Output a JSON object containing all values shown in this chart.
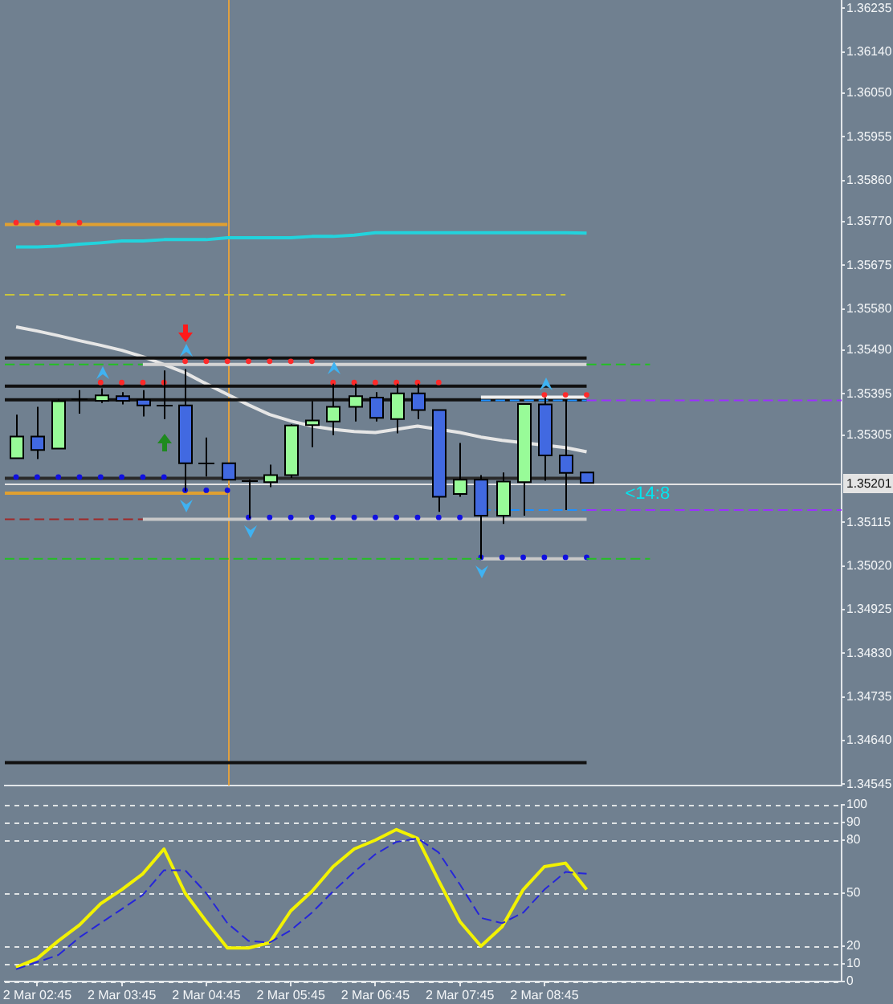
{
  "chart_data": [
    {
      "type": "candlestick",
      "x": [
        "--03-02T02:30",
        "--03-02T02:45",
        "--03-02T03:00",
        "--03-02T03:15",
        "--03-02T03:30",
        "--03-02T03:45",
        "--03-02T04:00",
        "--03-02T04:15",
        "--03-02T04:30",
        "--03-02T04:45",
        "--03-02T05:00",
        "--03-02T05:15",
        "--03-02T05:30",
        "--03-02T05:45",
        "--03-02T06:00",
        "--03-02T06:15",
        "--03-02T06:30",
        "--03-02T06:45",
        "--03-02T07:00",
        "--03-02T07:15",
        "--03-02T07:30",
        "--03-02T07:45",
        "--03-02T08:00",
        "--03-02T08:15",
        "--03-02T08:30",
        "--03-02T08:45",
        "--03-02T09:00",
        "--03-02T09:15"
      ],
      "ohlc": [
        [
          1.35255,
          1.3535,
          1.35254,
          1.35302
        ],
        [
          1.35302,
          1.35367,
          1.35253,
          1.35273
        ],
        [
          1.35276,
          1.35384,
          1.35276,
          1.35379
        ],
        [
          1.35384,
          1.35403,
          1.35352,
          1.35384
        ],
        [
          1.3538,
          1.35407,
          1.35375,
          1.35392
        ],
        [
          1.3539,
          1.35399,
          1.35372,
          1.3538
        ],
        [
          1.35382,
          1.35403,
          1.35346,
          1.3537
        ],
        [
          1.35372,
          1.35446,
          1.3534,
          1.35372
        ],
        [
          1.3537,
          1.35449,
          1.35183,
          1.35244
        ],
        [
          1.35244,
          1.353,
          1.35215,
          1.35244
        ],
        [
          1.35244,
          1.35244,
          1.35208,
          1.35208
        ],
        [
          1.35208,
          1.35208,
          1.35124,
          1.35208
        ],
        [
          1.35203,
          1.35241,
          1.35192,
          1.35218
        ],
        [
          1.35218,
          1.35329,
          1.35212,
          1.35326
        ],
        [
          1.35327,
          1.35379,
          1.35279,
          1.35337
        ],
        [
          1.35335,
          1.35417,
          1.35305,
          1.35367
        ],
        [
          1.35367,
          1.35417,
          1.35335,
          1.3539
        ],
        [
          1.35387,
          1.35399,
          1.35335,
          1.35343
        ],
        [
          1.3534,
          1.35417,
          1.35309,
          1.35396
        ],
        [
          1.35396,
          1.35417,
          1.3534,
          1.3536
        ],
        [
          1.3536,
          1.3536,
          1.35138,
          1.35171
        ],
        [
          1.35177,
          1.35288,
          1.35171,
          1.35208
        ],
        [
          1.35208,
          1.35218,
          1.35036,
          1.3513
        ],
        [
          1.3513,
          1.35224,
          1.35112,
          1.35204
        ],
        [
          1.35203,
          1.35373,
          1.3513,
          1.35373
        ],
        [
          1.35372,
          1.35387,
          1.35206,
          1.35261
        ],
        [
          1.35261,
          1.35382,
          1.35142,
          1.35223
        ],
        [
          1.35224,
          1.35224,
          1.35201,
          1.35201
        ]
      ],
      "colors": [
        "#98fb98",
        "#4169e1",
        "#98fb98",
        "#000000",
        "#98fb98",
        "#4169e1",
        "#4169e1",
        "#000000",
        "#4169e1",
        "#000000",
        "#4169e1",
        "#000000",
        "#98fb98",
        "#98fb98",
        "#98fb98",
        "#98fb98",
        "#98fb98",
        "#4169e1",
        "#98fb98",
        "#4169e1",
        "#4169e1",
        "#98fb98",
        "#4169e1",
        "#98fb98",
        "#98fb98",
        "#4169e1",
        "#4169e1",
        "#4169e1"
      ],
      "series": [
        {
          "type": "line",
          "x": [
            "--03-02T02:30",
            "--03-02T02:45",
            "--03-02T03:00",
            "--03-02T03:15",
            "--03-02T03:30",
            "--03-02T03:45",
            "--03-02T04:00",
            "--03-02T04:15",
            "--03-02T04:30",
            "--03-02T04:45",
            "--03-02T05:00",
            "--03-02T05:15",
            "--03-02T05:30",
            "--03-02T05:45",
            "--03-02T06:00",
            "--03-02T06:15",
            "--03-02T06:30",
            "--03-02T06:45",
            "--03-02T07:00",
            "--03-02T07:15",
            "--03-02T07:30",
            "--03-02T07:45",
            "--03-02T08:00",
            "--03-02T08:15",
            "--03-02T08:30",
            "--03-02T08:45",
            "--03-02T09:00",
            "--03-02T09:15"
          ],
          "values": [
            1.35541,
            1.35532,
            1.35522,
            1.35511,
            1.35501,
            1.3549,
            1.35476,
            1.35459,
            1.35441,
            1.35417,
            1.35394,
            1.35371,
            1.3535,
            1.35336,
            1.35325,
            1.35318,
            1.35313,
            1.35311,
            1.35318,
            1.35325,
            null,
            1.35311,
            1.35301,
            1.35294,
            null,
            null,
            1.35278,
            1.35269
          ],
          "color": "#e6e6e6"
        },
        {
          "type": "line",
          "x": [
            "--03-02T02:30",
            "--03-02T02:45",
            "--03-02T03:00",
            "--03-02T03:15",
            "--03-02T03:30",
            "--03-02T03:45",
            "--03-02T04:00",
            "--03-02T04:15",
            "--03-02T04:30",
            "--03-02T04:45",
            "--03-02T05:00",
            "--03-02T05:15",
            "--03-02T05:30",
            "--03-02T05:45",
            "--03-02T06:00",
            "--03-02T06:15",
            "--03-02T06:30",
            "--03-02T06:45",
            "--03-02T07:00",
            "--03-02T07:15",
            "--03-02T07:30",
            "--03-02T07:45",
            "--03-02T08:00",
            "--03-02T08:15",
            "--03-02T08:30",
            "--03-02T08:45",
            "--03-02T09:00",
            "--03-02T09:15"
          ],
          "values": [
            1.35715,
            1.35715,
            1.35717,
            1.35721,
            1.35724,
            1.35728,
            1.35728,
            1.35731,
            1.35731,
            1.35731,
            1.35735,
            1.35735,
            1.35735,
            1.35735,
            1.35738,
            1.35738,
            1.35741,
            1.35746,
            1.35746,
            1.35746,
            1.35746,
            1.35746,
            1.35746,
            1.35746,
            1.35746,
            1.35746,
            1.35746,
            1.35745
          ],
          "color": "#22d3dd"
        },
        {
          "type": "line",
          "x": [
            "--03-02T02:22",
            "--03-02T05:00"
          ],
          "values": [
            1.35764,
            1.35764
          ],
          "color": "#e0a030"
        },
        {
          "type": "scatter",
          "x": [
            "--03-02T02:30",
            "--03-02T02:45",
            "--03-02T03:00",
            "--03-02T03:15"
          ],
          "values": [
            1.35768,
            1.35768,
            1.35768,
            1.35768
          ],
          "color": "#ff2a2a",
          "marker": "circle"
        },
        {
          "type": "line",
          "x": [
            "--03-02T02:22",
            "--03-02T09:00"
          ],
          "values": [
            1.35611,
            1.35611
          ],
          "color": "#c8c43c",
          "line_style": "dashed"
        },
        {
          "type": "line",
          "x": [
            "--03-02T02:22",
            "--03-02T09:15"
          ],
          "values": [
            1.35473,
            1.35473
          ],
          "color": "#111111"
        },
        {
          "type": "line",
          "x": [
            "--03-02T02:22",
            "--03-02T04:00"
          ],
          "values": [
            1.35459,
            1.35459
          ],
          "color": "#22c022",
          "line_style": "dashed"
        },
        {
          "type": "line",
          "x": [
            "--03-02T04:00",
            "--03-02T09:15"
          ],
          "values": [
            1.35459,
            1.35459
          ],
          "color": "#d4d4d4"
        },
        {
          "type": "line",
          "x": [
            "--03-02T09:15",
            "--03-02T10:00"
          ],
          "values": [
            1.35459,
            1.35459
          ],
          "color": "#22c022",
          "line_style": "dashed"
        },
        {
          "type": "scatter",
          "x": [
            "--03-02T04:30",
            "--03-02T04:45",
            "--03-02T05:00",
            "--03-02T05:15",
            "--03-02T05:30",
            "--03-02T05:45",
            "--03-02T06:00"
          ],
          "values": [
            1.35466,
            1.35466,
            1.35466,
            1.35466,
            1.35466,
            1.35466,
            1.35466
          ],
          "color": "#ff2a2a",
          "marker": "circle"
        },
        {
          "type": "line",
          "x": [
            "--03-02T02:22",
            "--03-02T09:15"
          ],
          "values": [
            1.35412,
            1.35412
          ],
          "color": "#111111"
        },
        {
          "type": "scatter",
          "x": [
            "--03-02T03:30",
            "--03-02T03:45",
            "--03-02T04:00",
            "--03-02T04:15",
            "--03-02T06:15",
            "--03-02T06:30",
            "--03-02T06:45",
            "--03-02T07:00",
            "--03-02T07:15",
            "--03-02T07:30"
          ],
          "values": [
            1.3542,
            1.3542,
            1.3542,
            1.3542,
            1.3542,
            1.3542,
            1.3542,
            1.3542,
            1.3542,
            1.3542
          ],
          "color": "#ff2a2a",
          "marker": "circle"
        },
        {
          "type": "line",
          "x": [
            "--03-02T02:22",
            "--03-02T09:15"
          ],
          "values": [
            1.35382,
            1.35382
          ],
          "color": "#111111"
        },
        {
          "type": "line",
          "x": [
            "--03-02T08:00",
            "--03-02T09:15"
          ],
          "values": [
            1.35388,
            1.35388
          ],
          "color": "#f0f0f0"
        },
        {
          "type": "scatter",
          "x": [
            "--03-02T08:45",
            "--03-02T09:00",
            "--03-02T09:15"
          ],
          "values": [
            1.35393,
            1.35393,
            1.35393
          ],
          "color": "#ff2a2a",
          "marker": "circle"
        },
        {
          "type": "line",
          "x": [
            "--03-02T08:00",
            "--03-02T09:15"
          ],
          "values": [
            1.35381,
            1.35381
          ],
          "color": "#1e90ff",
          "line_style": "dashed"
        },
        {
          "type": "line",
          "x": [
            "--03-02T09:15",
            "--03-02T12:16"
          ],
          "values": [
            1.35381,
            1.35381
          ],
          "color": "#9b30ff",
          "line_style": "dashed"
        },
        {
          "type": "line",
          "x": [
            "--03-02T02:22",
            "--03-02T09:15"
          ],
          "values": [
            1.35211,
            1.35211
          ],
          "color": "#2a2a2a"
        },
        {
          "type": "scatter",
          "x": [
            "--03-02T02:30",
            "--03-02T02:45",
            "--03-02T03:00",
            "--03-02T03:15",
            "--03-02T03:30",
            "--03-02T03:45",
            "--03-02T04:00",
            "--03-02T04:15"
          ],
          "values": [
            1.35214,
            1.35214,
            1.35214,
            1.35214,
            1.35214,
            1.35214,
            1.35214,
            1.35214
          ],
          "color": "#1010e0",
          "marker": "circle"
        },
        {
          "type": "line",
          "x": [
            "--03-02T02:22",
            "--03-02T05:00"
          ],
          "values": [
            1.35179,
            1.35179
          ],
          "color": "#e0a030"
        },
        {
          "type": "scatter",
          "x": [
            "--03-02T04:30",
            "--03-02T04:45",
            "--03-02T05:00"
          ],
          "values": [
            1.35185,
            1.35185,
            1.35185
          ],
          "color": "#1010e0",
          "marker": "circle"
        },
        {
          "type": "line",
          "x": [
            "--03-02T02:22",
            "--03-02T04:00"
          ],
          "values": [
            1.35122,
            1.35122
          ],
          "color": "#a02828",
          "line_style": "dashed"
        },
        {
          "type": "line",
          "x": [
            "--03-02T04:00",
            "--03-02T09:15"
          ],
          "values": [
            1.35122,
            1.35122
          ],
          "color": "#c8c8c8"
        },
        {
          "type": "scatter",
          "x": [
            "--03-02T05:15",
            "--03-02T05:30",
            "--03-02T05:45",
            "--03-02T06:00",
            "--03-02T06:15",
            "--03-02T06:30",
            "--03-02T06:45",
            "--03-02T07:00",
            "--03-02T07:15",
            "--03-02T07:30",
            "--03-02T07:45"
          ],
          "values": [
            1.35126,
            1.35126,
            1.35126,
            1.35126,
            1.35126,
            1.35126,
            1.35126,
            1.35126,
            1.35126,
            1.35126,
            1.35126
          ],
          "color": "#1010e0",
          "marker": "circle"
        },
        {
          "type": "line",
          "x": [
            "--03-02T08:00",
            "--03-02T09:15"
          ],
          "values": [
            1.35142,
            1.35142
          ],
          "color": "#1e90ff",
          "line_style": "dashed"
        },
        {
          "type": "line",
          "x": [
            "--03-02T09:15",
            "--03-02T12:16"
          ],
          "values": [
            1.35142,
            1.35142
          ],
          "color": "#9b30ff",
          "line_style": "dashed"
        },
        {
          "type": "line",
          "x": [
            "--03-02T08:00",
            "--03-02T09:15"
          ],
          "values": [
            1.35036,
            1.35036
          ],
          "color": "#c8c8c8"
        },
        {
          "type": "scatter",
          "x": [
            "--03-02T08:00",
            "--03-02T08:15",
            "--03-02T08:30",
            "--03-02T08:45",
            "--03-02T09:00",
            "--03-02T09:15"
          ],
          "values": [
            1.35039,
            1.35039,
            1.35039,
            1.35039,
            1.35039,
            1.35039
          ],
          "color": "#1010e0",
          "marker": "circle"
        },
        {
          "type": "line",
          "x": [
            "--03-02T02:22",
            "--03-02T08:00"
          ],
          "values": [
            1.35036,
            1.35036
          ],
          "color": "#22c022",
          "line_style": "dashed"
        },
        {
          "type": "line",
          "x": [
            "--03-02T09:15",
            "--03-02T10:00"
          ],
          "values": [
            1.35036,
            1.35036
          ],
          "color": "#22c022",
          "line_style": "dashed"
        },
        {
          "type": "line",
          "x": [
            "--03-02T02:22",
            "--03-02T09:15"
          ],
          "values": [
            1.34592,
            1.34592
          ],
          "color": "#111111"
        }
      ],
      "xlim": [
        "--03-02T02:22",
        "--03-02T12:16"
      ],
      "ylim": [
        1.34542,
        1.36253
      ],
      "yticks": [
        1.34545,
        {
          "value": 1.3464,
          "label": "1.34640"
        },
        1.34735,
        {
          "value": 1.3483,
          "label": "1.34830"
        },
        1.34925,
        {
          "value": 1.3502,
          "label": "1.35020"
        },
        1.35115,
        1.35305,
        1.35395,
        {
          "value": 1.3549,
          "label": "1.35490"
        },
        {
          "value": 1.3558,
          "label": "1.35580"
        },
        1.35675,
        {
          "value": 1.3577,
          "label": "1.35770"
        },
        {
          "value": 1.3586,
          "label": "1.35860"
        },
        1.35955,
        {
          "value": 1.3605,
          "label": "1.36050"
        },
        {
          "value": 1.3614,
          "label": "1.36140"
        },
        1.36235
      ],
      "ref_lines": [
        {
          "axis": "y",
          "value": 1.35201,
          "label": "1.35201",
          "color": "#e4e4e4"
        },
        {
          "axis": "x",
          "value": "--03-02T05:00",
          "color": "#e0a040"
        }
      ],
      "annotations": [
        "<14:8"
      ],
      "marker": "none",
      "tick_labels": "y"
    },
    {
      "type": "line",
      "x": [
        "--03-02T02:30",
        "--03-02T02:45",
        "--03-02T03:00",
        "--03-02T03:15",
        "--03-02T03:30",
        "--03-02T03:45",
        "--03-02T04:00",
        "--03-02T04:15",
        "--03-02T04:30",
        "--03-02T04:45",
        "--03-02T05:00",
        "--03-02T05:15",
        "--03-02T05:30",
        "--03-02T05:45",
        "--03-02T06:00",
        "--03-02T06:15",
        "--03-02T06:30",
        "--03-02T06:45",
        "--03-02T07:00",
        "--03-02T07:15",
        "--03-02T07:30",
        "--03-02T07:45",
        "--03-02T08:00",
        "--03-02T08:15",
        "--03-02T08:30",
        "--03-02T08:45",
        "--03-02T09:00",
        "--03-02T09:15"
      ],
      "series": [
        {
          "color": "#f2f200",
          "values": [
            8,
            13,
            23,
            32,
            44,
            52,
            61,
            75,
            50,
            34,
            19,
            19,
            22,
            40,
            51,
            65,
            75,
            80,
            86,
            81,
            57,
            34,
            20,
            31,
            52,
            65,
            67,
            52
          ]
        },
        {
          "color": "#2626d9",
          "values": [
            7,
            11,
            15,
            25,
            33,
            41,
            49,
            63,
            63,
            50,
            33,
            23,
            22,
            29,
            39,
            51,
            62,
            72,
            79,
            81,
            73,
            55,
            36,
            33,
            39,
            52,
            62,
            61
          ],
          "line_style": "dashed"
        }
      ],
      "xlim": [
        "--03-02T02:22",
        "--03-02T12:16"
      ],
      "xticks": [
        {
          "value": "--03-02T02:45",
          "label": "2 Mar 02:45"
        },
        {
          "value": "--03-02T03:45",
          "label": "2 Mar 03:45"
        },
        {
          "value": "--03-02T04:45",
          "label": "2 Mar 04:45"
        },
        {
          "value": "--03-02T05:45",
          "label": "2 Mar 05:45"
        },
        {
          "value": "--03-02T06:45",
          "label": "2 Mar 06:45"
        },
        {
          "value": "--03-02T07:45",
          "label": "2 Mar 07:45"
        },
        {
          "value": "--03-02T08:45",
          "label": "2 Mar 08:45"
        }
      ],
      "ylim": [
        0,
        100
      ],
      "yticks": [
        0,
        10,
        20,
        50,
        80,
        90,
        100
      ],
      "grid": "y",
      "marker": "none"
    }
  ]
}
